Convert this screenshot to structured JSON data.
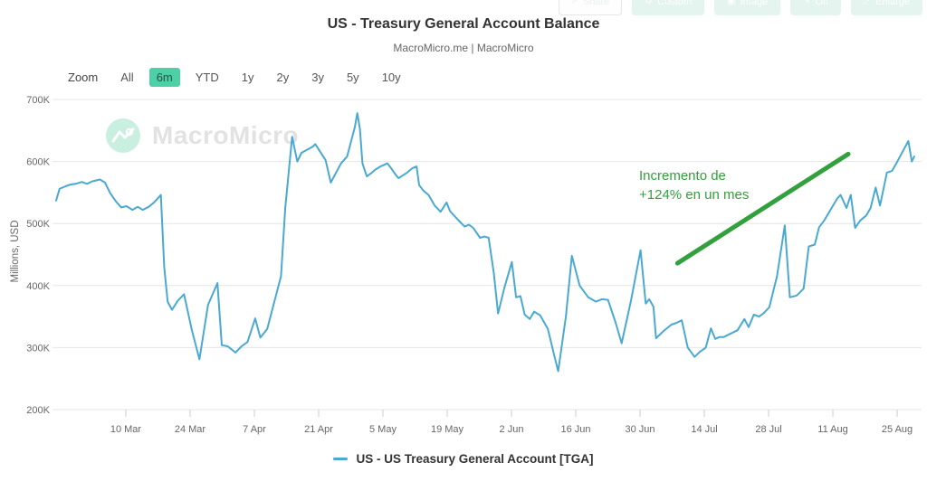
{
  "toolbar": {
    "buttons": [
      {
        "label": "Share",
        "icon": "share-icon",
        "glyph": "↗"
      },
      {
        "label": "Custom",
        "icon": "custom-icon",
        "glyph": "⚙"
      },
      {
        "label": "Image",
        "icon": "image-icon",
        "glyph": "▣"
      },
      {
        "label": "Off",
        "icon": "pencil-icon",
        "glyph": "✎"
      },
      {
        "label": "Enlarge",
        "icon": "enlarge-icon",
        "glyph": "⤢"
      }
    ]
  },
  "header": {
    "title": "US - Treasury General Account Balance",
    "subtitle": "MacroMicro.me | MacroMicro"
  },
  "zoom_controls": {
    "label": "Zoom",
    "options": [
      "All",
      "6m",
      "YTD",
      "1y",
      "2y",
      "3y",
      "5y",
      "10y"
    ],
    "active": "6m",
    "active_bg": "#4ed0a6"
  },
  "watermark": {
    "text": "MacroMicro",
    "circle_color": "#c9efe1",
    "text_color": "#e2e2e2"
  },
  "chart_data": {
    "type": "line",
    "title": "US - Treasury General Account Balance",
    "subtitle": "MacroMicro.me | MacroMicro",
    "xlabel": "",
    "ylabel": "Millions, USD",
    "ylim": [
      200,
      700
    ],
    "y_tick_values": [
      200,
      300,
      400,
      500,
      600,
      700
    ],
    "y_tick_labels": [
      "200K",
      "300K",
      "400K",
      "500K",
      "600K",
      "700K"
    ],
    "grid": true,
    "legend_position": "bottom",
    "grid_color": "#e6e6e6",
    "axis_text_color": "#666666",
    "x_ticks": [
      {
        "label": "10 Mar",
        "pct": 8.12
      },
      {
        "label": "24 Mar",
        "pct": 15.61
      },
      {
        "label": "7 Apr",
        "pct": 23.1
      },
      {
        "label": "21 Apr",
        "pct": 30.59
      },
      {
        "label": "5 May",
        "pct": 38.08
      },
      {
        "label": "19 May",
        "pct": 45.57
      },
      {
        "label": "2 Jun",
        "pct": 53.06
      },
      {
        "label": "16 Jun",
        "pct": 60.55
      },
      {
        "label": "30 Jun",
        "pct": 68.04
      },
      {
        "label": "14 Jul",
        "pct": 75.53
      },
      {
        "label": "28 Jul",
        "pct": 83.02
      },
      {
        "label": "11 Aug",
        "pct": 90.51
      },
      {
        "label": "25 Aug",
        "pct": 98.0
      }
    ],
    "series": [
      {
        "name": "US - US Treasury General Account [TGA]",
        "color": "#4aa9d2",
        "unit": "K Millions USD",
        "points": [
          [
            0.0,
            537
          ],
          [
            0.4,
            556
          ],
          [
            1.1,
            560
          ],
          [
            1.7,
            563
          ],
          [
            2.3,
            564
          ],
          [
            3.0,
            567
          ],
          [
            3.6,
            564
          ],
          [
            4.2,
            568
          ],
          [
            5.1,
            571
          ],
          [
            5.7,
            566
          ],
          [
            6.3,
            549
          ],
          [
            7.0,
            535
          ],
          [
            7.6,
            526
          ],
          [
            8.2,
            528
          ],
          [
            8.9,
            522
          ],
          [
            9.5,
            527
          ],
          [
            10.1,
            522
          ],
          [
            10.8,
            527
          ],
          [
            11.4,
            534
          ],
          [
            12.2,
            546
          ],
          [
            12.6,
            430
          ],
          [
            13.0,
            374
          ],
          [
            13.5,
            361
          ],
          [
            14.2,
            376
          ],
          [
            14.9,
            386
          ],
          [
            15.8,
            329
          ],
          [
            16.7,
            281
          ],
          [
            17.7,
            369
          ],
          [
            18.8,
            404
          ],
          [
            19.3,
            304
          ],
          [
            20.0,
            302
          ],
          [
            20.9,
            292
          ],
          [
            21.6,
            302
          ],
          [
            22.3,
            309
          ],
          [
            23.2,
            347
          ],
          [
            23.8,
            316
          ],
          [
            24.6,
            330
          ],
          [
            26.2,
            415
          ],
          [
            26.7,
            525
          ],
          [
            27.5,
            640
          ],
          [
            28.1,
            600
          ],
          [
            28.6,
            614
          ],
          [
            29.9,
            624
          ],
          [
            30.2,
            628
          ],
          [
            31.4,
            602
          ],
          [
            32.0,
            566
          ],
          [
            33.2,
            597
          ],
          [
            33.9,
            608
          ],
          [
            34.8,
            655
          ],
          [
            35.1,
            678
          ],
          [
            35.4,
            652
          ],
          [
            35.7,
            597
          ],
          [
            36.2,
            576
          ],
          [
            36.7,
            581
          ],
          [
            37.2,
            587
          ],
          [
            37.8,
            592
          ],
          [
            38.6,
            597
          ],
          [
            39.0,
            590
          ],
          [
            39.6,
            578
          ],
          [
            39.9,
            573
          ],
          [
            40.9,
            582
          ],
          [
            41.5,
            589
          ],
          [
            42.0,
            592
          ],
          [
            42.3,
            562
          ],
          [
            42.8,
            553
          ],
          [
            43.4,
            546
          ],
          [
            44.1,
            529
          ],
          [
            44.8,
            519
          ],
          [
            45.5,
            534
          ],
          [
            45.9,
            520
          ],
          [
            46.9,
            505
          ],
          [
            47.6,
            495
          ],
          [
            48.1,
            498
          ],
          [
            48.6,
            493
          ],
          [
            49.4,
            477
          ],
          [
            49.9,
            479
          ],
          [
            50.4,
            477
          ],
          [
            51.0,
            420
          ],
          [
            51.5,
            355
          ],
          [
            52.2,
            395
          ],
          [
            53.1,
            438
          ],
          [
            53.6,
            381
          ],
          [
            54.1,
            383
          ],
          [
            54.6,
            353
          ],
          [
            55.2,
            346
          ],
          [
            55.7,
            358
          ],
          [
            56.4,
            352
          ],
          [
            57.3,
            330
          ],
          [
            58.0,
            290
          ],
          [
            58.5,
            262
          ],
          [
            59.4,
            350
          ],
          [
            60.1,
            448
          ],
          [
            61.0,
            400
          ],
          [
            62.0,
            381
          ],
          [
            62.9,
            374
          ],
          [
            63.6,
            378
          ],
          [
            64.3,
            377
          ],
          [
            65.2,
            340
          ],
          [
            65.9,
            307
          ],
          [
            67.0,
            377
          ],
          [
            68.1,
            457
          ],
          [
            68.7,
            371
          ],
          [
            69.1,
            378
          ],
          [
            69.6,
            366
          ],
          [
            69.9,
            315
          ],
          [
            70.8,
            327
          ],
          [
            71.7,
            337
          ],
          [
            72.3,
            340
          ],
          [
            72.9,
            344
          ],
          [
            73.6,
            300
          ],
          [
            74.4,
            285
          ],
          [
            75.0,
            293
          ],
          [
            75.7,
            300
          ],
          [
            76.3,
            331
          ],
          [
            76.8,
            314
          ],
          [
            77.3,
            317
          ],
          [
            77.8,
            317
          ],
          [
            79.4,
            328
          ],
          [
            80.2,
            346
          ],
          [
            80.7,
            333
          ],
          [
            81.3,
            353
          ],
          [
            81.9,
            350
          ],
          [
            82.4,
            355
          ],
          [
            83.1,
            365
          ],
          [
            84.0,
            415
          ],
          [
            84.9,
            497
          ],
          [
            85.5,
            381
          ],
          [
            86.3,
            384
          ],
          [
            87.1,
            395
          ],
          [
            87.7,
            463
          ],
          [
            88.4,
            466
          ],
          [
            88.9,
            494
          ],
          [
            89.5,
            505
          ],
          [
            91.0,
            540
          ],
          [
            91.4,
            546
          ],
          [
            92.1,
            525
          ],
          [
            92.6,
            546
          ],
          [
            93.1,
            493
          ],
          [
            93.7,
            505
          ],
          [
            94.4,
            513
          ],
          [
            94.9,
            525
          ],
          [
            95.5,
            558
          ],
          [
            96.0,
            529
          ],
          [
            96.8,
            582
          ],
          [
            97.4,
            585
          ],
          [
            97.9,
            597
          ],
          [
            99.0,
            625
          ],
          [
            99.3,
            633
          ],
          [
            99.7,
            600
          ],
          [
            100.0,
            608
          ]
        ]
      }
    ],
    "annotation": {
      "text": "Incremento de +124% en un mes",
      "color": "#32a03c",
      "trend_line": {
        "x1_pct": 72.4,
        "v1": 436,
        "x2_pct": 92.3,
        "v2": 612,
        "width": 5
      }
    }
  },
  "legend": {
    "marker_color": "#4aa9d2",
    "label": "US - US Treasury General Account [TGA]"
  }
}
